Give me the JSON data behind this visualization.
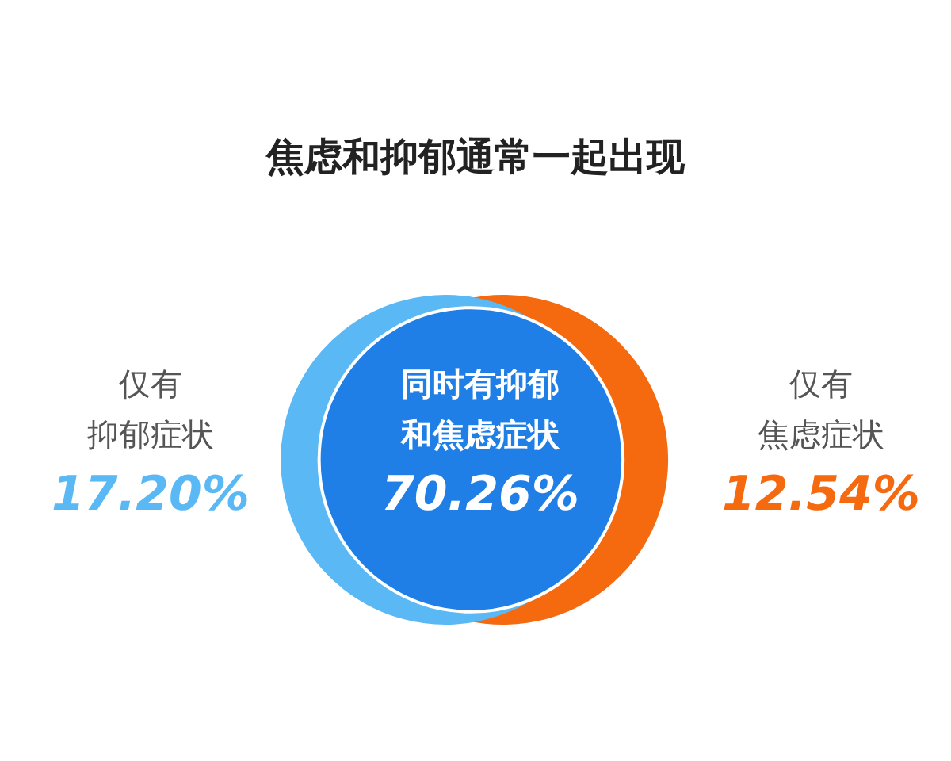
{
  "chart_data": {
    "type": "other",
    "title": "焦虑和抑郁通常一起出现",
    "categories": [
      "仅有抑郁症状",
      "同时有抑郁和焦虑症状",
      "仅有焦虑症状"
    ],
    "values": [
      17.2,
      70.26,
      12.54
    ],
    "value_labels": [
      "17.20%",
      "70.26%",
      "12.54%"
    ],
    "colors": [
      "#5ab8f5",
      "#1f7fe6",
      "#f5690f"
    ]
  }
}
